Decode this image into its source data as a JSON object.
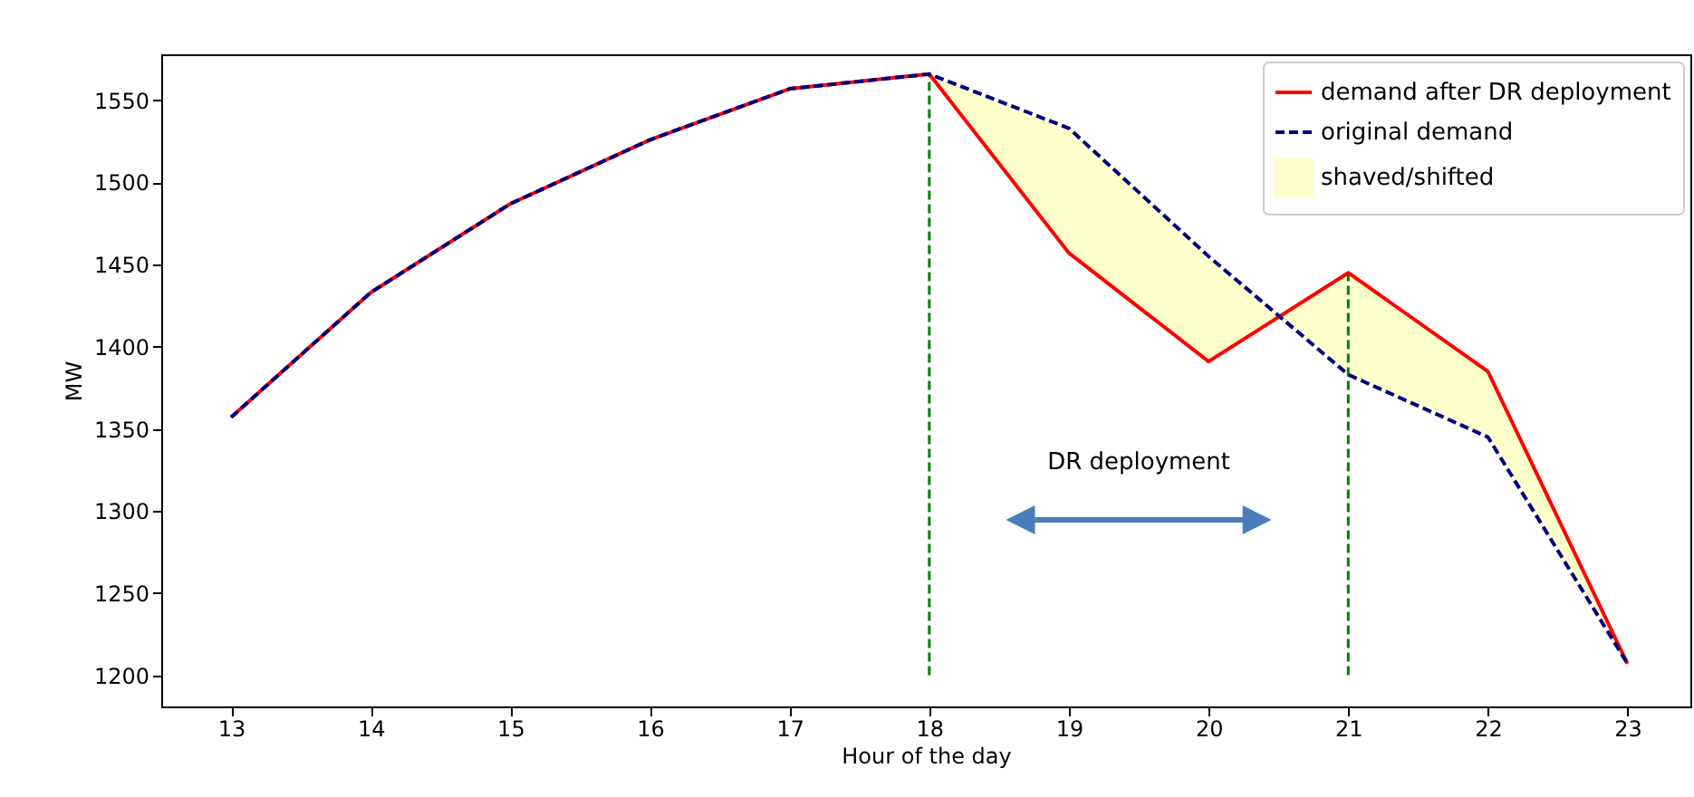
{
  "chart_data": {
    "type": "line",
    "xlabel": "Hour of the day",
    "ylabel": "MW",
    "x": [
      13,
      14,
      15,
      16,
      17,
      18,
      19,
      20,
      21,
      22,
      23
    ],
    "series": [
      {
        "name": "demand after DR deployment",
        "color": "#ff0000",
        "line_style": "solid",
        "values": [
          1357,
          1433,
          1487,
          1526,
          1557,
          1566,
          1457,
          1391,
          1445,
          1385,
          1207
        ]
      },
      {
        "name": "original demand",
        "color": "#000080",
        "line_style": "dashed",
        "values": [
          1357,
          1433,
          1487,
          1526,
          1557,
          1566,
          1533,
          1455,
          1383,
          1345,
          1207
        ]
      },
      {
        "name": "shaved/shifted",
        "type": "area",
        "color": "#ffffcc",
        "x": [
          18,
          19,
          20,
          21,
          22,
          23
        ],
        "values": [
          1566,
          1533,
          1455,
          1383,
          1345,
          1207
        ]
      }
    ],
    "xlim": [
      12.5,
      23.45
    ],
    "ylim": [
      1181,
      1578
    ],
    "xticks": [
      13,
      14,
      15,
      16,
      17,
      18,
      19,
      20,
      21,
      22,
      23
    ],
    "yticks": [
      1200,
      1250,
      1300,
      1350,
      1400,
      1450,
      1500,
      1550
    ],
    "ref_lines": [
      {
        "axis": "x",
        "value": 18,
        "color": "#008000",
        "line_style": "dashed"
      },
      {
        "axis": "x",
        "value": 21,
        "color": "#008000",
        "line_style": "dashed"
      }
    ],
    "annotations": [
      "DR deployment"
    ],
    "grid": false,
    "legend": "top right",
    "marker": "none"
  }
}
